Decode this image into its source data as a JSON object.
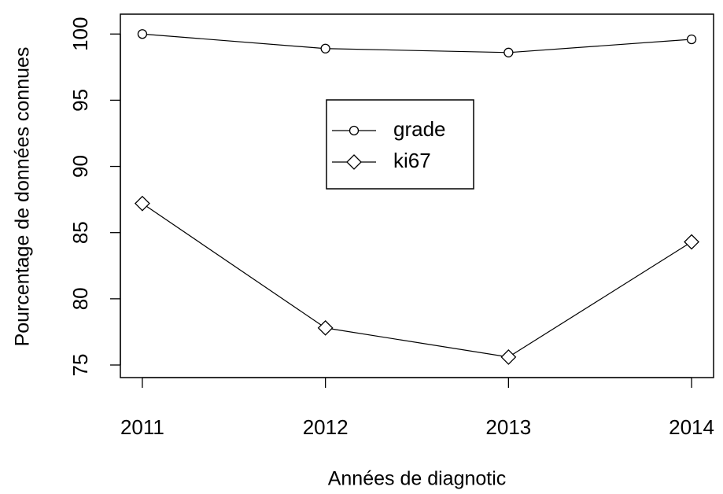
{
  "chart_data": {
    "type": "line",
    "xlabel": "Années de diagnotic",
    "ylabel": "Pourcentage de données connues",
    "x": [
      2011,
      2012,
      2013,
      2014
    ],
    "series": [
      {
        "name": "grade",
        "color": "#000000",
        "marker": "circle",
        "values": [
          100,
          98.9,
          98.6,
          99.6
        ]
      },
      {
        "name": "ki67",
        "color": "#000000",
        "marker": "diamond",
        "values": [
          87.2,
          77.8,
          75.6,
          84.3
        ]
      }
    ],
    "xlim": [
      2010.88,
      2014.12
    ],
    "xticks": [
      2011,
      2012,
      2013,
      2014
    ],
    "ylim": [
      74.05,
      101.5
    ],
    "yticks": [
      75,
      80,
      85,
      90,
      95,
      100
    ],
    "legend": "top"
  }
}
